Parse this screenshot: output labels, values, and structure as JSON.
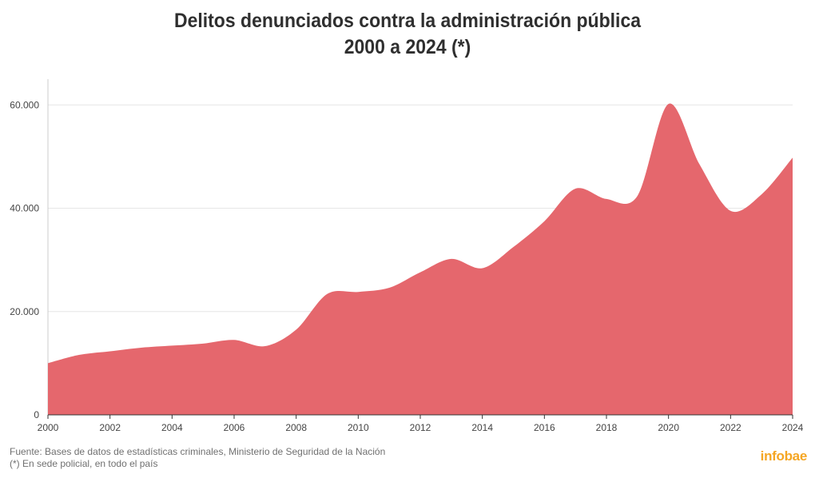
{
  "header": {
    "title_line1": "Delitos denunciados contra la administración pública",
    "title_line2": "2000 a 2024 (*)"
  },
  "footer": {
    "source": "Fuente: Bases de datos de estadísticas criminales, Ministerio de Seguridad de la Nación",
    "note": "(*) En sede policial, en todo el país"
  },
  "brand": {
    "logo_text": "infobae",
    "logo_color": "#f5a623"
  },
  "chart_data": {
    "type": "area",
    "title": "Delitos denunciados contra la administración pública 2000 a 2024 (*)",
    "xlabel": "",
    "ylabel": "",
    "x": [
      2000,
      2001,
      2002,
      2003,
      2004,
      2005,
      2006,
      2007,
      2008,
      2009,
      2010,
      2011,
      2012,
      2013,
      2014,
      2015,
      2016,
      2017,
      2018,
      2019,
      2020,
      2021,
      2022,
      2023,
      2024
    ],
    "values": [
      10000,
      11600,
      12300,
      13000,
      13400,
      13800,
      14500,
      13300,
      16500,
      23400,
      23800,
      24600,
      27600,
      30200,
      28400,
      32500,
      37500,
      43800,
      41800,
      42400,
      60200,
      48500,
      39500,
      42700,
      49800
    ],
    "x_ticks": [
      "2000",
      "2002",
      "2004",
      "2006",
      "2008",
      "2010",
      "2012",
      "2014",
      "2016",
      "2018",
      "2020",
      "2022",
      "2024"
    ],
    "y_ticks": [
      "0",
      "20.000",
      "40.000",
      "60.000"
    ],
    "y_tick_values": [
      0,
      20000,
      40000,
      60000
    ],
    "xlim": [
      2000,
      2024
    ],
    "ylim": [
      0,
      65000
    ],
    "grid": true,
    "fill_color": "#e5676d"
  }
}
